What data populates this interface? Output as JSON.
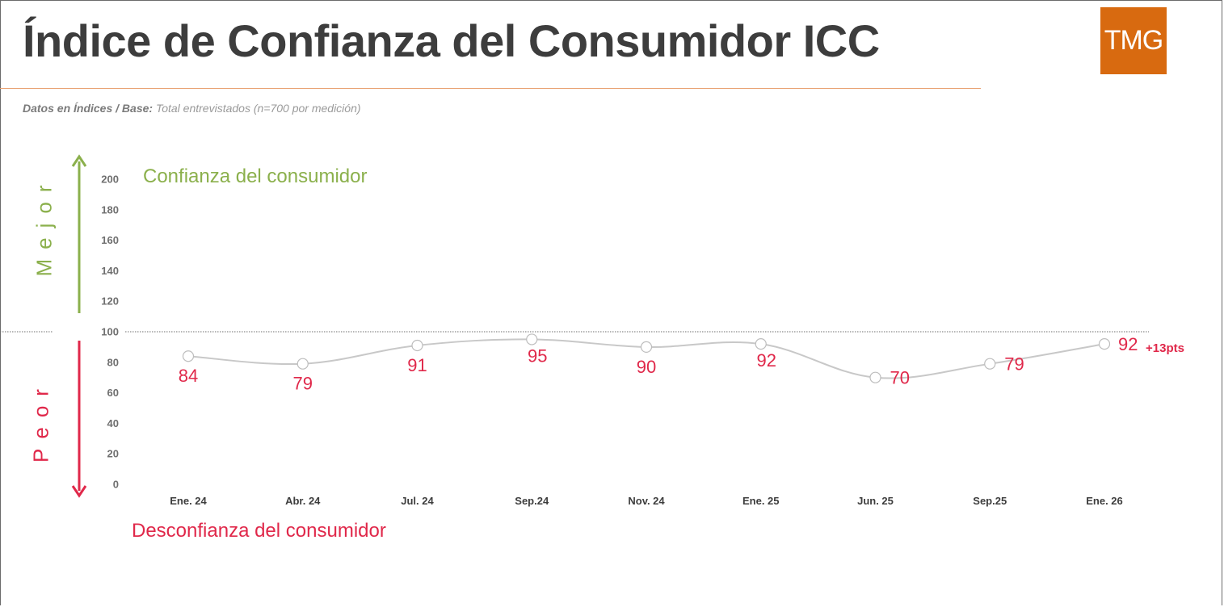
{
  "header": {
    "title": "Índice de Confianza del Consumidor ICC",
    "logo_text": "TMG",
    "subtitle_bold": "Datos en Índices / Base:",
    "subtitle_rest": " Total entrevistados (n=700 por medición)"
  },
  "side": {
    "better": "Mejor",
    "worse": "Peor"
  },
  "zones": {
    "good": "Confianza del consumidor",
    "bad": "Desconfianza del consumidor"
  },
  "delta_label": "+13pts",
  "colors": {
    "accent": "#d86a10",
    "good": "#8bb04c",
    "bad": "#e0284a",
    "line": "#c8c8c8"
  },
  "chart_data": {
    "type": "line",
    "categories": [
      "Ene. 24",
      "Abr. 24",
      "Jul. 24",
      "Sep.24",
      "Nov. 24",
      "Ene. 25",
      "Jun. 25",
      "Sep.25",
      "Ene. 26"
    ],
    "series": [
      {
        "values": [
          84,
          79,
          91,
          95,
          90,
          92,
          70,
          79,
          92
        ]
      }
    ],
    "yticks": [
      0,
      20,
      40,
      60,
      80,
      100,
      120,
      140,
      160,
      180,
      200
    ],
    "ylim": [
      0,
      200
    ],
    "reference_line": 100,
    "title": "",
    "xlabel": "",
    "ylabel": ""
  }
}
